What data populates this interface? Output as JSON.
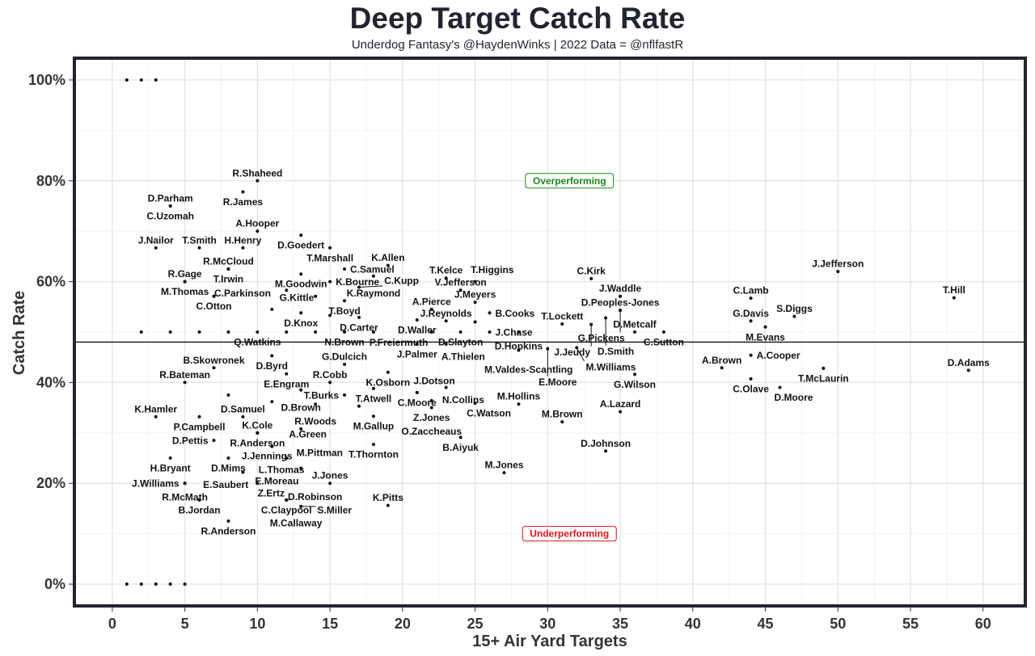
{
  "chart_data": {
    "type": "scatter",
    "title": "Deep Target Catch Rate",
    "subtitle": "Underdog Fantasy's @HaydenWinks | 2022 Data = @nflfastR",
    "xlabel": "15+ Air Yard Targets",
    "ylabel": "Catch Rate",
    "xlim": [
      -2.5,
      62.8
    ],
    "ylim": [
      -4,
      104
    ],
    "x_ticks": [
      0,
      5,
      10,
      15,
      20,
      25,
      30,
      35,
      40,
      45,
      50,
      55,
      60
    ],
    "y_ticks": [
      0,
      20,
      40,
      60,
      80,
      100
    ],
    "y_tick_labels": [
      "0%",
      "20%",
      "40%",
      "60%",
      "80%",
      "100%"
    ],
    "grid": true,
    "reference_line": {
      "y": 48
    },
    "annotations": [
      {
        "text": "Overperforming",
        "x": 31.5,
        "y": 80,
        "color": "#1a8a1a"
      },
      {
        "text": "Underperforming",
        "x": 31.5,
        "y": 10,
        "color": "#e0121b"
      }
    ],
    "points": [
      {
        "x": 1,
        "y": 100,
        "label": ""
      },
      {
        "x": 2,
        "y": 100,
        "label": ""
      },
      {
        "x": 3,
        "y": 100,
        "label": ""
      },
      {
        "x": 1,
        "y": 0,
        "label": ""
      },
      {
        "x": 2,
        "y": 0,
        "label": ""
      },
      {
        "x": 3,
        "y": 0,
        "label": ""
      },
      {
        "x": 4,
        "y": 0,
        "label": ""
      },
      {
        "x": 5,
        "y": 0,
        "label": ""
      },
      {
        "x": 10,
        "y": 80,
        "label": "R.Shaheed"
      },
      {
        "x": 9,
        "y": 77.8,
        "label": "R.James"
      },
      {
        "x": 4,
        "y": 75,
        "label": "D.Parham"
      },
      {
        "x": 4,
        "y": 75,
        "label": "C.Uzomah"
      },
      {
        "x": 3,
        "y": 66.7,
        "label": "J.Nailor"
      },
      {
        "x": 10,
        "y": 70,
        "label": "A.Hooper"
      },
      {
        "x": 13,
        "y": 69.2,
        "label": "D.Goedert"
      },
      {
        "x": 6,
        "y": 66.7,
        "label": "T.Smith"
      },
      {
        "x": 9,
        "y": 66.7,
        "label": "H.Henry"
      },
      {
        "x": 15,
        "y": 66.7,
        "label": "T.Marshall"
      },
      {
        "x": 8,
        "y": 62.5,
        "label": "R.McCloud"
      },
      {
        "x": 8,
        "y": 62.5,
        "label": "T.Irwin"
      },
      {
        "x": 13,
        "y": 61.5,
        "label": "M.Goodwin"
      },
      {
        "x": 16,
        "y": 62.5,
        "label": "C.Samuel"
      },
      {
        "x": 15,
        "y": 60,
        "label": "K.Bourne"
      },
      {
        "x": 18,
        "y": 61.1,
        "label": "K.Raymond"
      },
      {
        "x": 19,
        "y": 63.2,
        "label": "K.Allen"
      },
      {
        "x": 23,
        "y": 60.7,
        "label": "T.Kelce"
      },
      {
        "x": 5,
        "y": 60,
        "label": "R.Gage"
      },
      {
        "x": 5,
        "y": 60,
        "label": "M.Thomas"
      },
      {
        "x": 7,
        "y": 57.1,
        "label": "C.Otton"
      },
      {
        "x": 7,
        "y": 57.1,
        "label": "C.Parkinson"
      },
      {
        "x": 12,
        "y": 58.3,
        "label": "G.Kittle"
      },
      {
        "x": 16,
        "y": 56.2,
        "label": "T.Boyd"
      },
      {
        "x": 11,
        "y": 54.5,
        "label": ""
      },
      {
        "x": 14,
        "y": 57.1,
        "label": ""
      },
      {
        "x": 13,
        "y": 53.8,
        "label": "D.Knox"
      },
      {
        "x": 17,
        "y": 58.9,
        "label": "C.Kupp"
      },
      {
        "x": 17,
        "y": 52.9,
        "label": "D.Carter"
      },
      {
        "x": 15,
        "y": 53.3,
        "label": ""
      },
      {
        "x": 22,
        "y": 54.5,
        "label": "A.Pierce"
      },
      {
        "x": 21,
        "y": 52.4,
        "label": "D.Waller"
      },
      {
        "x": 23,
        "y": 52.2,
        "label": "J.Reynolds"
      },
      {
        "x": 24,
        "y": 58.3,
        "label": "V.Jefferson"
      },
      {
        "x": 25,
        "y": 60,
        "label": "T.Higgins"
      },
      {
        "x": 25,
        "y": 55.9,
        "label": "J.Meyers"
      },
      {
        "x": 25,
        "y": 52,
        "label": ""
      },
      {
        "x": 26,
        "y": 53.8,
        "label": "B.Cooks"
      },
      {
        "x": 31,
        "y": 51.6,
        "label": "T.Lockett"
      },
      {
        "x": 2,
        "y": 50,
        "label": ""
      },
      {
        "x": 4,
        "y": 50,
        "label": ""
      },
      {
        "x": 6,
        "y": 50,
        "label": ""
      },
      {
        "x": 8,
        "y": 50,
        "label": ""
      },
      {
        "x": 10,
        "y": 50,
        "label": "Q.Watkins"
      },
      {
        "x": 12,
        "y": 50,
        "label": ""
      },
      {
        "x": 14,
        "y": 50,
        "label": ""
      },
      {
        "x": 16,
        "y": 50,
        "label": "N.Brown"
      },
      {
        "x": 18,
        "y": 50,
        "label": "P.Freiermuth"
      },
      {
        "x": 22,
        "y": 50,
        "label": ""
      },
      {
        "x": 24,
        "y": 50,
        "label": "D.Slayton"
      },
      {
        "x": 26,
        "y": 50,
        "label": "J.Chase"
      },
      {
        "x": 28,
        "y": 50,
        "label": "D.Hopkins"
      },
      {
        "x": 36,
        "y": 50,
        "label": "D.Metcalf"
      },
      {
        "x": 38,
        "y": 50,
        "label": "C.Sutton"
      },
      {
        "x": 21,
        "y": 47.6,
        "label": "J.Palmer"
      },
      {
        "x": 23,
        "y": 47.6,
        "label": "A.Thielen"
      },
      {
        "x": 11,
        "y": 45.3,
        "label": "D.Byrd"
      },
      {
        "x": 12,
        "y": 41.7,
        "label": "E.Engram"
      },
      {
        "x": 7,
        "y": 42.9,
        "label": "B.Skowronek"
      },
      {
        "x": 15,
        "y": 40,
        "label": "R.Cobb"
      },
      {
        "x": 16,
        "y": 43.6,
        "label": "G.Dulcich"
      },
      {
        "x": 19,
        "y": 42,
        "label": "K.Osborn"
      },
      {
        "x": 18,
        "y": 38.8,
        "label": "T.Atwell"
      },
      {
        "x": 16,
        "y": 37.5,
        "label": "T.Burks"
      },
      {
        "x": 21,
        "y": 38,
        "label": "C.Moore"
      },
      {
        "x": 21,
        "y": 38,
        "label": "J.Dotson"
      },
      {
        "x": 17,
        "y": 35.3,
        "label": ""
      },
      {
        "x": 18,
        "y": 33.3,
        "label": "M.Gallup"
      },
      {
        "x": 23,
        "y": 39,
        "label": "N.Collins"
      },
      {
        "x": 22,
        "y": 35,
        "label": "Z.Jones"
      },
      {
        "x": 22,
        "y": 36.4,
        "label": "O.Zaccheaus"
      },
      {
        "x": 25,
        "y": 35.9,
        "label": "C.Watson"
      },
      {
        "x": 24,
        "y": 29.1,
        "label": "B.Aiyuk"
      },
      {
        "x": 28,
        "y": 35.7,
        "label": "M.Hollins"
      },
      {
        "x": 27,
        "y": 22.1,
        "label": "M.Jones"
      },
      {
        "x": 18,
        "y": 27.7,
        "label": "T.Thornton"
      },
      {
        "x": 19,
        "y": 15.6,
        "label": "K.Pitts"
      },
      {
        "x": 15,
        "y": 20,
        "label": "J.Jones"
      },
      {
        "x": 5,
        "y": 40,
        "label": "R.Bateman"
      },
      {
        "x": 8,
        "y": 37.5,
        "label": ""
      },
      {
        "x": 13,
        "y": 38.5,
        "label": "D.Brown"
      },
      {
        "x": 11,
        "y": 36.2,
        "label": ""
      },
      {
        "x": 3,
        "y": 33.2,
        "label": "K.Hamler"
      },
      {
        "x": 6,
        "y": 33.2,
        "label": "P.Campbell"
      },
      {
        "x": 9,
        "y": 33.2,
        "label": "D.Samuel"
      },
      {
        "x": 14,
        "y": 35.7,
        "label": "R.Woods"
      },
      {
        "x": 10,
        "y": 30,
        "label": "K.Cole"
      },
      {
        "x": 10,
        "y": 30,
        "label": "R.Anderson"
      },
      {
        "x": 13,
        "y": 30.8,
        "label": "A.Green"
      },
      {
        "x": 7,
        "y": 28.5,
        "label": "D.Pettis"
      },
      {
        "x": 10,
        "y": 30,
        "label": "J.Jennings"
      },
      {
        "x": 11,
        "y": 27.3,
        "label": "L.Thomas"
      },
      {
        "x": 12,
        "y": 25,
        "label": "E.Moreau"
      },
      {
        "x": 13,
        "y": 23,
        "label": "M.Pittman"
      },
      {
        "x": 8,
        "y": 25,
        "label": "D.Mims"
      },
      {
        "x": 4,
        "y": 25,
        "label": "H.Bryant"
      },
      {
        "x": 9,
        "y": 22.2,
        "label": "E.Saubert"
      },
      {
        "x": 5,
        "y": 20,
        "label": "J.Williams"
      },
      {
        "x": 5,
        "y": 20,
        "label": "R.McMath"
      },
      {
        "x": 10,
        "y": 20,
        "label": "Z.Ertz"
      },
      {
        "x": 6,
        "y": 16.7,
        "label": "B.Jordan"
      },
      {
        "x": 12,
        "y": 16.7,
        "label": "C.Claypool"
      },
      {
        "x": 12,
        "y": 16.7,
        "label": "D.Robinson"
      },
      {
        "x": 12,
        "y": 16.7,
        "label": "M.Callaway"
      },
      {
        "x": 13,
        "y": 15.4,
        "label": "S.Miller"
      },
      {
        "x": 8,
        "y": 12.5,
        "label": "R.Anderson"
      },
      {
        "x": 33,
        "y": 60.6,
        "label": "C.Kirk"
      },
      {
        "x": 35,
        "y": 57.1,
        "label": "J.Waddle"
      },
      {
        "x": 35,
        "y": 54.3,
        "label": "D.Peoples-Jones"
      },
      {
        "x": 35,
        "y": 54.3,
        "label": "G.Pickens"
      },
      {
        "x": 34,
        "y": 52.8,
        "label": "D.Smith"
      },
      {
        "x": 33,
        "y": 51.5,
        "label": "J.Jeudy"
      },
      {
        "x": 28,
        "y": 46.4,
        "label": "M.Valdes-Scantling"
      },
      {
        "x": 30,
        "y": 46.7,
        "label": "E.Moore"
      },
      {
        "x": 32,
        "y": 46.9,
        "label": "M.Williams"
      },
      {
        "x": 36,
        "y": 41.6,
        "label": "G.Wilson"
      },
      {
        "x": 42,
        "y": 42.9,
        "label": "A.Brown"
      },
      {
        "x": 35,
        "y": 34.2,
        "label": "A.Lazard"
      },
      {
        "x": 31,
        "y": 32.2,
        "label": "M.Brown"
      },
      {
        "x": 34,
        "y": 26.4,
        "label": "D.Johnson"
      },
      {
        "x": 50,
        "y": 62,
        "label": "J.Jefferson"
      },
      {
        "x": 58,
        "y": 56.8,
        "label": "T.Hill"
      },
      {
        "x": 44,
        "y": 56.7,
        "label": "C.Lamb"
      },
      {
        "x": 47,
        "y": 53.1,
        "label": "S.Diggs"
      },
      {
        "x": 44,
        "y": 52.2,
        "label": "G.Davis"
      },
      {
        "x": 45,
        "y": 51,
        "label": "M.Evans"
      },
      {
        "x": 44,
        "y": 45.4,
        "label": "A.Cooper"
      },
      {
        "x": 44,
        "y": 40.7,
        "label": "C.Olave"
      },
      {
        "x": 49,
        "y": 42.8,
        "label": "T.McLaurin"
      },
      {
        "x": 46,
        "y": 39,
        "label": "D.Moore"
      },
      {
        "x": 59,
        "y": 42.4,
        "label": "D.Adams"
      }
    ]
  }
}
